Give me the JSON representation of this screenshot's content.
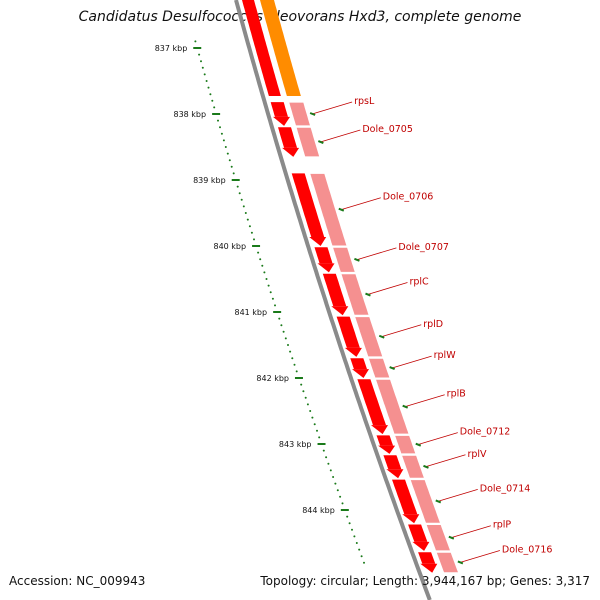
{
  "title": "Candidatus Desulfococcus oleovorans Hxd3, complete genome",
  "footer": {
    "accession": "Accession: NC_009943",
    "summary": "Topology: circular; Length: 3,944,167 bp; Genes: 3,317"
  },
  "colors": {
    "backbone": "#8a8a8a",
    "cds": "#ff0000",
    "gene": "#f59090",
    "gene_highlight": "#ff8c00",
    "label": "#c00000",
    "tick": "#1a7a1a"
  },
  "ticks": [
    {
      "kbp": 837,
      "label": "837 kbp"
    },
    {
      "kbp": 838,
      "label": "838 kbp"
    },
    {
      "kbp": 839,
      "label": "839 kbp"
    },
    {
      "kbp": 840,
      "label": "840 kbp"
    },
    {
      "kbp": 841,
      "label": "841 kbp"
    },
    {
      "kbp": 842,
      "label": "842 kbp"
    },
    {
      "kbp": 843,
      "label": "843 kbp"
    },
    {
      "kbp": 844,
      "label": "844 kbp"
    }
  ],
  "genes": [
    {
      "name": "rpsL",
      "start_kbp": 837.82,
      "end_kbp": 838.18
    },
    {
      "name": "Dole_0705",
      "start_kbp": 838.2,
      "end_kbp": 838.65
    },
    {
      "name": "Dole_0706",
      "start_kbp": 838.9,
      "end_kbp": 840.0
    },
    {
      "name": "Dole_0707",
      "start_kbp": 840.02,
      "end_kbp": 840.4
    },
    {
      "name": "rplC",
      "start_kbp": 840.42,
      "end_kbp": 841.05
    },
    {
      "name": "rplD",
      "start_kbp": 841.07,
      "end_kbp": 841.68
    },
    {
      "name": "rplW",
      "start_kbp": 841.7,
      "end_kbp": 842.0
    },
    {
      "name": "rplB",
      "start_kbp": 842.02,
      "end_kbp": 842.85
    },
    {
      "name": "Dole_0712",
      "start_kbp": 842.87,
      "end_kbp": 843.15
    },
    {
      "name": "rplV",
      "start_kbp": 843.17,
      "end_kbp": 843.52
    },
    {
      "name": "Dole_0714",
      "start_kbp": 843.54,
      "end_kbp": 844.2
    },
    {
      "name": "rplP",
      "start_kbp": 844.22,
      "end_kbp": 844.62
    },
    {
      "name": "Dole_0716",
      "start_kbp": 844.64,
      "end_kbp": 844.95
    }
  ]
}
